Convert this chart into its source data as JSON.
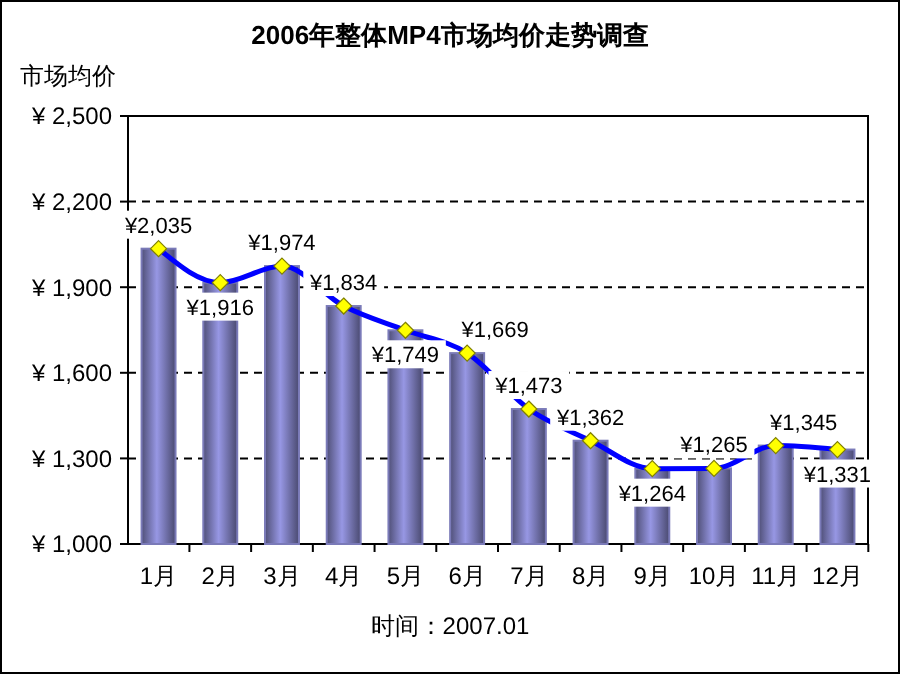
{
  "chart_data": {
    "type": "bar",
    "title": "2006年整体MP4市场均价走势调查",
    "ylabel": "市场均价",
    "categories": [
      "1月",
      "2月",
      "3月",
      "4月",
      "5月",
      "6月",
      "7月",
      "8月",
      "9月",
      "10月",
      "11月",
      "12月"
    ],
    "series": [
      {
        "color": "#7a7ab8",
        "values": [
          2035,
          1916,
          1974,
          1834,
          1749,
          1669,
          1473,
          1362,
          1264,
          1265,
          1345,
          1331
        ]
      },
      {
        "type": "line",
        "color": "#0000ff",
        "marker": "diamond",
        "values": [
          2035,
          1916,
          1974,
          1834,
          1749,
          1669,
          1473,
          1362,
          1264,
          1265,
          1345,
          1331
        ],
        "value_labels": [
          "¥2,035",
          "¥1,916",
          "¥1,974",
          "¥1,834",
          "¥1,749",
          "¥1,669",
          "¥1,473",
          "¥1,362",
          "¥1,264",
          "¥1,265",
          "¥1,345",
          "¥1,331"
        ]
      }
    ],
    "ylim": [
      1000,
      2500
    ],
    "yticks": [
      {
        "value": 1000,
        "label": "¥ 1,000"
      },
      {
        "value": 1300,
        "label": "¥ 1,300"
      },
      {
        "value": 1600,
        "label": "¥ 1,600"
      },
      {
        "value": 1900,
        "label": "¥ 1,900"
      },
      {
        "value": 2200,
        "label": "¥ 2,200"
      },
      {
        "value": 2500,
        "label": "¥ 2,500"
      }
    ],
    "grid": "y",
    "annotations": [
      "时间：2007.01"
    ]
  }
}
